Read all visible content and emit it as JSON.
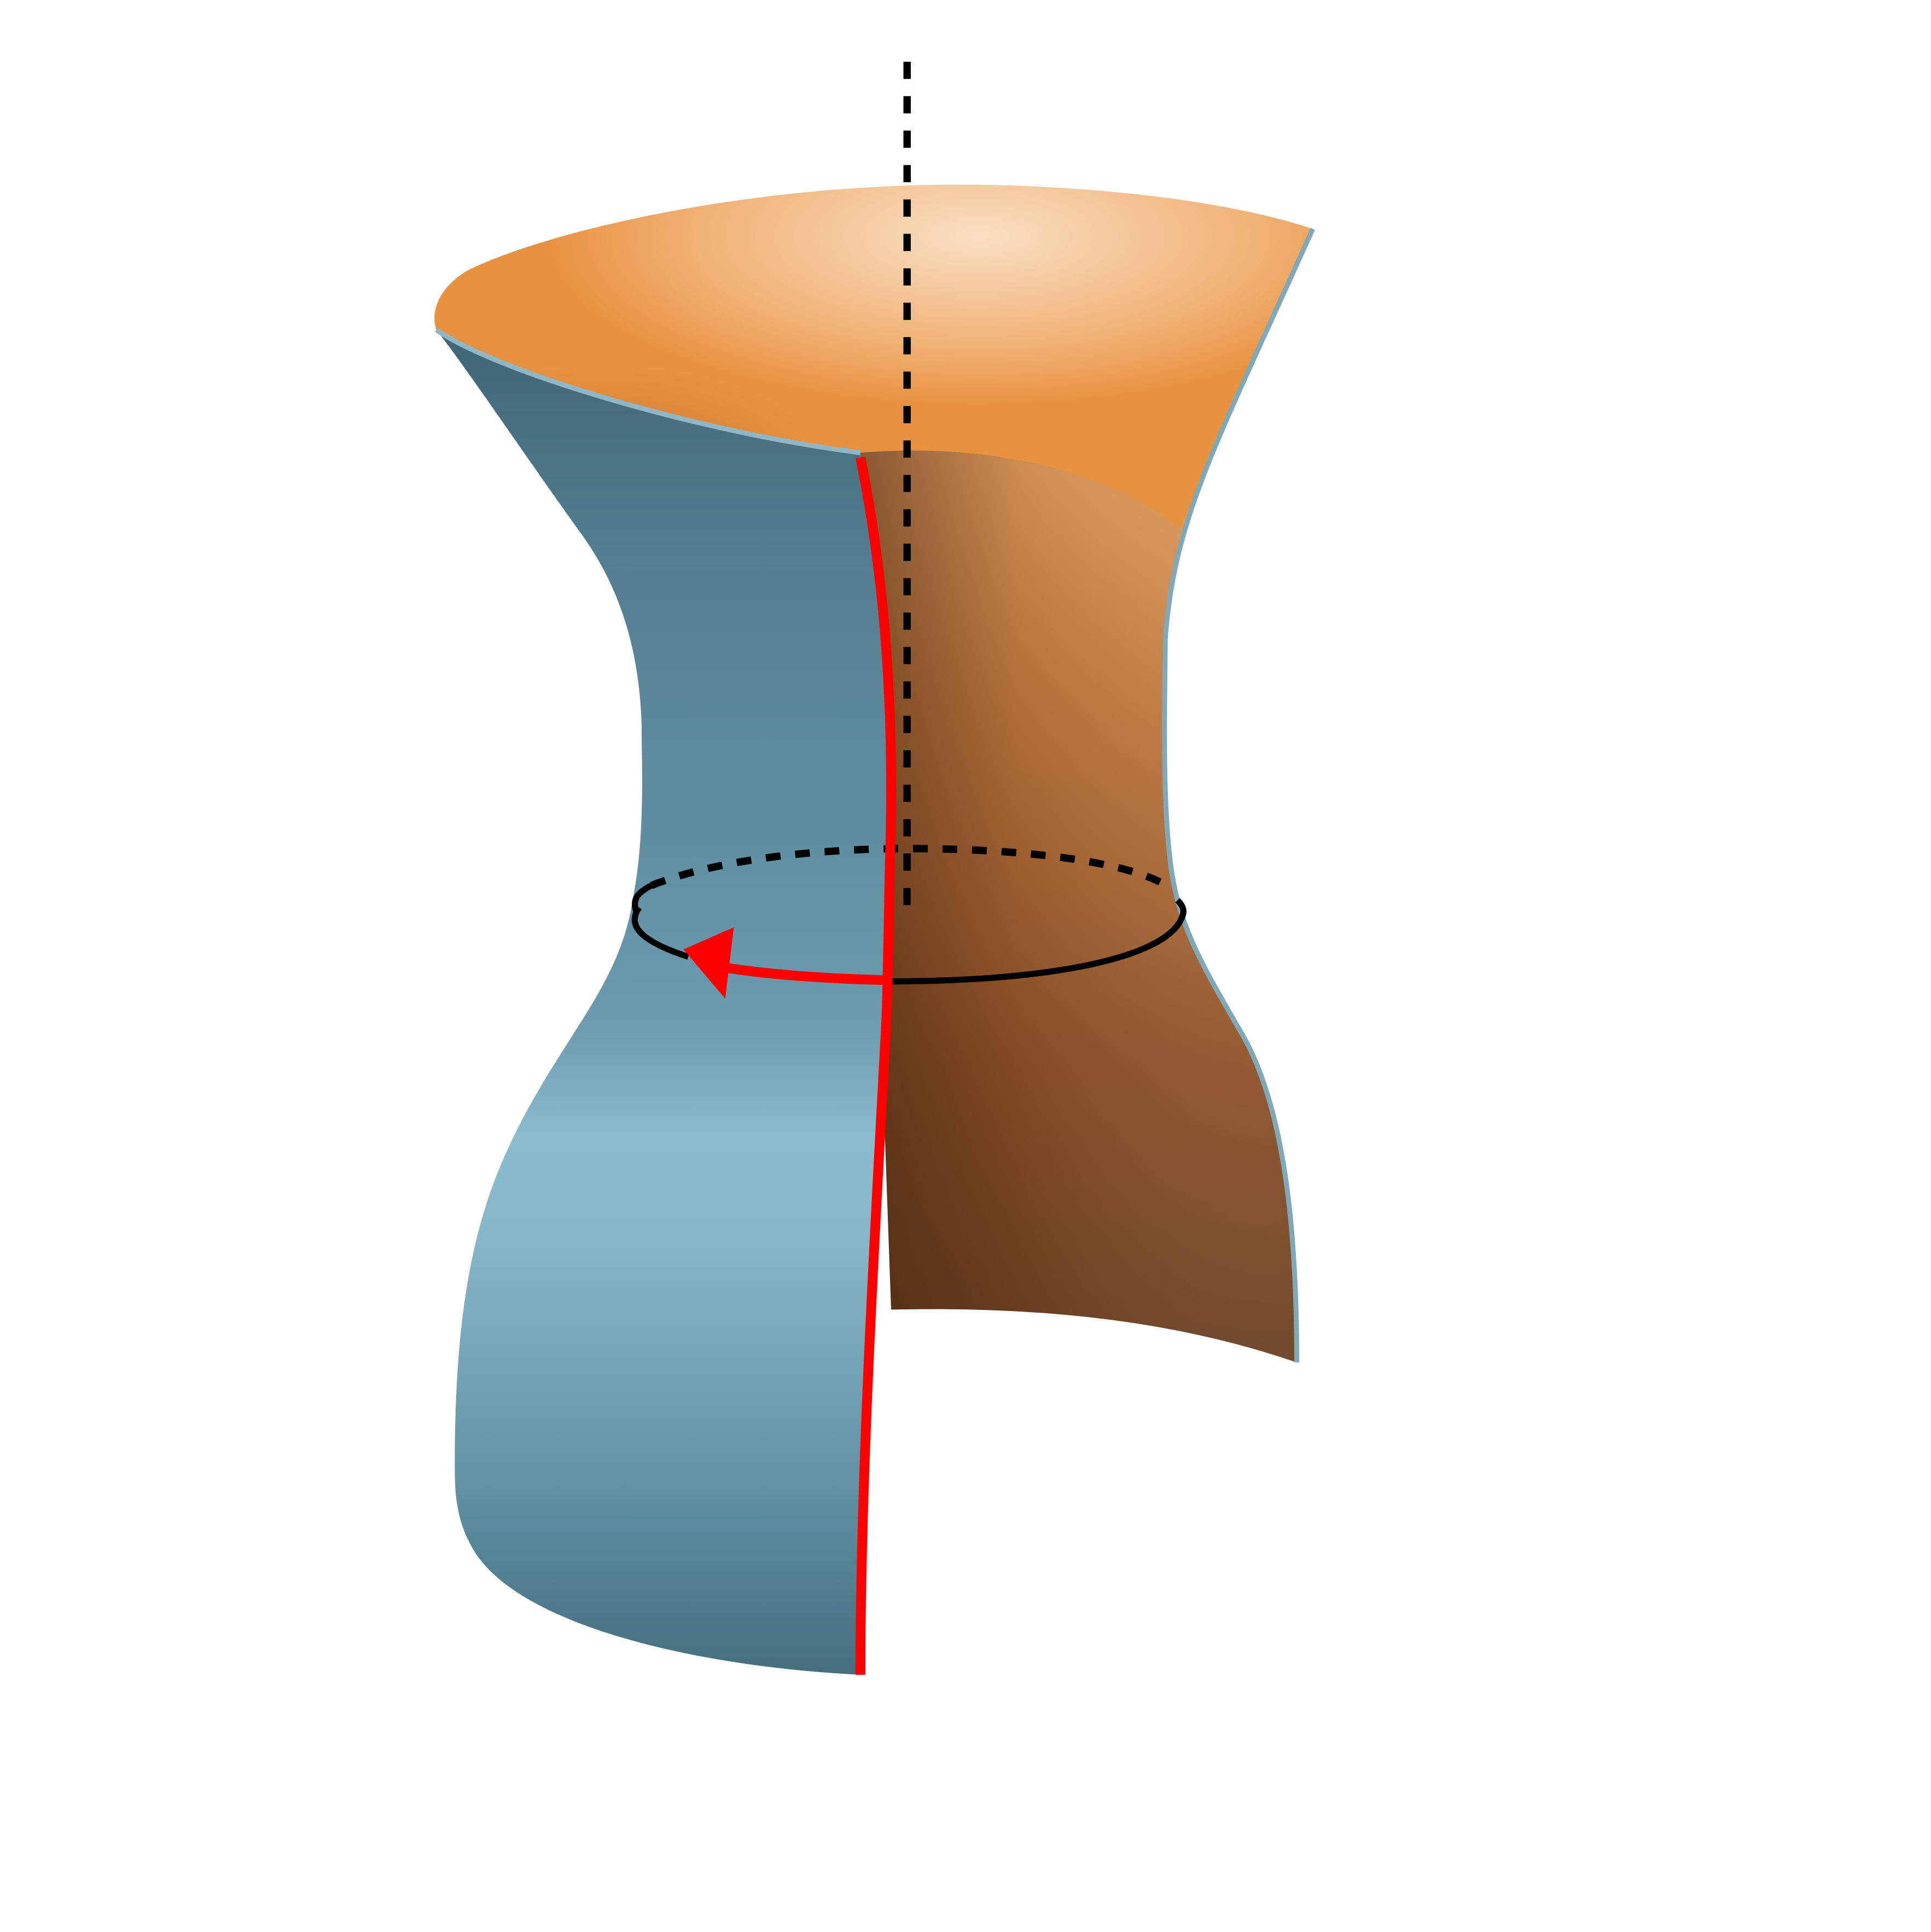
{
  "figure": {
    "subject": "hourglass-surface-with-waist-loop",
    "colors": {
      "background": "#ffffff",
      "outer_surface_light": "#8bbccd",
      "outer_surface_mid": "#6496a8",
      "outer_surface_dark": "#3f6675",
      "inner_surface_light": "#f7d8b8",
      "inner_surface_mid": "#e6924a",
      "inner_surface_dark": "#6a3f22",
      "surface_edge": "#7fa9b8",
      "highlight_curve": "#ff0000",
      "axis": "#000000",
      "loop": "#000000"
    },
    "icons": {
      "arrowhead": "triangle-arrowhead-icon"
    }
  }
}
